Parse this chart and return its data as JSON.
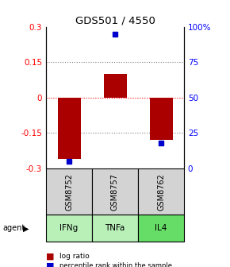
{
  "title": "GDS501 / 4550",
  "samples": [
    "GSM8752",
    "GSM8757",
    "GSM8762"
  ],
  "agents": [
    "IFNg",
    "TNFa",
    "IL4"
  ],
  "agent_colors": [
    "#b8f0b8",
    "#b8f0b8",
    "#66dd66"
  ],
  "log_ratios": [
    -0.26,
    0.1,
    -0.18
  ],
  "percentile_ranks": [
    5.0,
    95.0,
    18.0
  ],
  "bar_color": "#aa0000",
  "dot_color": "#0000cc",
  "ylim_left": [
    -0.3,
    0.3
  ],
  "ylim_right": [
    0,
    100
  ],
  "yticks_left": [
    -0.3,
    -0.15,
    0,
    0.15,
    0.3
  ],
  "yticks_right": [
    0,
    25,
    50,
    75,
    100
  ],
  "ytick_labels_right": [
    "0",
    "25",
    "50",
    "75",
    "100%"
  ],
  "sample_box_color": "#d3d3d3",
  "bar_width": 0.5,
  "x_positions": [
    0,
    1,
    2
  ]
}
